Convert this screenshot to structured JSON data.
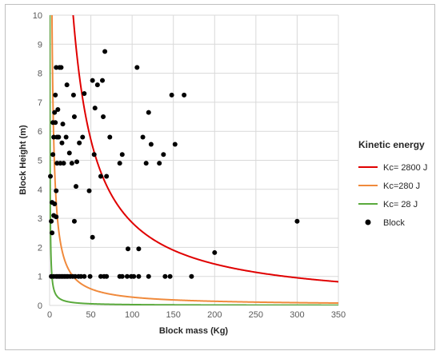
{
  "chart_data": {
    "type": "scatter",
    "xlabel": "Block mass (Kg)",
    "ylabel": "Block Height (m)",
    "xlim": [
      0,
      350
    ],
    "ylim": [
      0,
      10
    ],
    "xticks": [
      0,
      50,
      100,
      150,
      200,
      250,
      300,
      350
    ],
    "yticks": [
      0,
      1,
      2,
      3,
      4,
      5,
      6,
      7,
      8,
      9,
      10
    ],
    "grid": true,
    "legend_title": "Kinetic energy",
    "legend_position": "right",
    "curves": [
      {
        "name": "Kc= 2800 J",
        "energy_J": 2800,
        "color": "#e00000"
      },
      {
        "name": "Kc=280 J",
        "energy_J": 280,
        "color": "#f08a3c"
      },
      {
        "name": "Kc= 28 J",
        "energy_J": 28,
        "color": "#5aaa3c"
      }
    ],
    "points_series": {
      "name": "Block",
      "color": "#000000",
      "points": [
        [
          1,
          4.45
        ],
        [
          2,
          2.9
        ],
        [
          3,
          2.5
        ],
        [
          3,
          3.55
        ],
        [
          4,
          6.3
        ],
        [
          4,
          5.2
        ],
        [
          5,
          5.8
        ],
        [
          5,
          3.1
        ],
        [
          6,
          6.65
        ],
        [
          6,
          3.5
        ],
        [
          7,
          6.3
        ],
        [
          7,
          7.25
        ],
        [
          8,
          8.2
        ],
        [
          8,
          3.95
        ],
        [
          8,
          3.05
        ],
        [
          9,
          5.8
        ],
        [
          9,
          4.9
        ],
        [
          10,
          6.75
        ],
        [
          11,
          5.8
        ],
        [
          12,
          8.2
        ],
        [
          13,
          4.9
        ],
        [
          14,
          8.2
        ],
        [
          15,
          5.6
        ],
        [
          16,
          6.25
        ],
        [
          17,
          4.9
        ],
        [
          20,
          5.8
        ],
        [
          21,
          7.6
        ],
        [
          24,
          5.25
        ],
        [
          27,
          4.9
        ],
        [
          29,
          7.25
        ],
        [
          30,
          6.5
        ],
        [
          30,
          2.9
        ],
        [
          32,
          4.1
        ],
        [
          33,
          4.95
        ],
        [
          36,
          5.6
        ],
        [
          40,
          5.8
        ],
        [
          42,
          7.3
        ],
        [
          48,
          3.95
        ],
        [
          52,
          7.75
        ],
        [
          52,
          2.35
        ],
        [
          54,
          5.2
        ],
        [
          55,
          6.8
        ],
        [
          58,
          7.6
        ],
        [
          62,
          4.45
        ],
        [
          64,
          7.75
        ],
        [
          65,
          6.5
        ],
        [
          67,
          8.75
        ],
        [
          69,
          4.45
        ],
        [
          73,
          5.8
        ],
        [
          85,
          4.9
        ],
        [
          88,
          5.2
        ],
        [
          95,
          1.95
        ],
        [
          106,
          8.2
        ],
        [
          108,
          1.95
        ],
        [
          113,
          5.8
        ],
        [
          117,
          4.9
        ],
        [
          120,
          6.65
        ],
        [
          123,
          5.55
        ],
        [
          133,
          4.9
        ],
        [
          138,
          5.2
        ],
        [
          148,
          7.25
        ],
        [
          152,
          5.55
        ],
        [
          163,
          7.25
        ],
        [
          200,
          1.82
        ],
        [
          300,
          2.9
        ],
        [
          2,
          1
        ],
        [
          5,
          1
        ],
        [
          8,
          1
        ],
        [
          10,
          1
        ],
        [
          12,
          1
        ],
        [
          14,
          1
        ],
        [
          16,
          1
        ],
        [
          18,
          1
        ],
        [
          20,
          1
        ],
        [
          22,
          1
        ],
        [
          25,
          1
        ],
        [
          28,
          1
        ],
        [
          31,
          1
        ],
        [
          35,
          1
        ],
        [
          38,
          1
        ],
        [
          42,
          1
        ],
        [
          49,
          1
        ],
        [
          62,
          1
        ],
        [
          66,
          1
        ],
        [
          69,
          1
        ],
        [
          85,
          1
        ],
        [
          88,
          1
        ],
        [
          94,
          1
        ],
        [
          99,
          1
        ],
        [
          102,
          1
        ],
        [
          108,
          1
        ],
        [
          120,
          1
        ],
        [
          140,
          1
        ],
        [
          146,
          1
        ],
        [
          172,
          1
        ]
      ]
    }
  }
}
